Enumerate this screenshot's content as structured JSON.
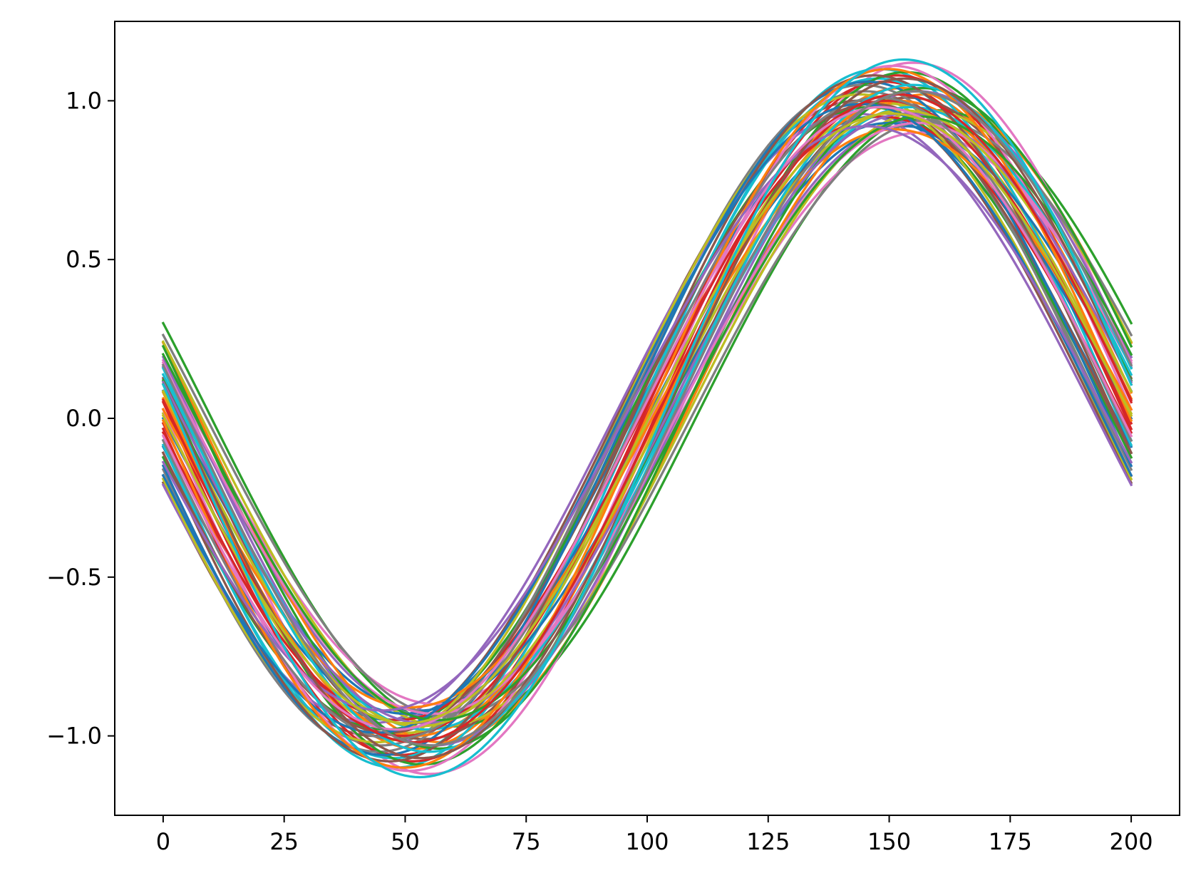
{
  "chart_data": {
    "type": "line",
    "title": "",
    "xlabel": "",
    "ylabel": "",
    "xlim": [
      -10,
      210
    ],
    "ylim": [
      -1.25,
      1.25
    ],
    "grid": false,
    "legend": "none",
    "x_ticks": [
      0,
      25,
      50,
      75,
      100,
      125,
      150,
      175,
      200
    ],
    "x_tick_labels": [
      "0",
      "25",
      "50",
      "75",
      "100",
      "125",
      "150",
      "175",
      "200"
    ],
    "y_ticks": [
      -1.0,
      -0.5,
      0.0,
      0.5,
      1.0
    ],
    "y_tick_labels": [
      "−1.0",
      "−0.5",
      "0.0",
      "0.5",
      "1.0"
    ],
    "x_domain": [
      0,
      200
    ],
    "series_model": "y = -A * sin(2*pi*(x - shift)/200)",
    "palette": [
      "#1f77b4",
      "#ff7f0e",
      "#2ca02c",
      "#d62728",
      "#9467bd",
      "#8c564b",
      "#e377c2",
      "#7f7f7f",
      "#bcbd22",
      "#17becf"
    ],
    "series": [
      {
        "amplitude": 0.95,
        "shift": -3.0
      },
      {
        "amplitude": 1.04,
        "shift": 2.5
      },
      {
        "amplitude": 0.97,
        "shift": 10.0
      },
      {
        "amplitude": 1.06,
        "shift": -1.0
      },
      {
        "amplitude": 0.94,
        "shift": 5.5
      },
      {
        "amplitude": 1.0,
        "shift": -6.5
      },
      {
        "amplitude": 1.12,
        "shift": 5.0
      },
      {
        "amplitude": 1.03,
        "shift": -5.0
      },
      {
        "amplitude": 0.99,
        "shift": 0.5
      },
      {
        "amplitude": 1.1,
        "shift": -2.0
      },
      {
        "amplitude": 0.92,
        "shift": 3.0
      },
      {
        "amplitude": 1.02,
        "shift": 7.5
      },
      {
        "amplitude": 0.98,
        "shift": -4.0
      },
      {
        "amplitude": 1.08,
        "shift": 1.5
      },
      {
        "amplitude": 0.96,
        "shift": -7.0
      },
      {
        "amplitude": 1.01,
        "shift": 4.0
      },
      {
        "amplitude": 0.9,
        "shift": 6.5
      },
      {
        "amplitude": 1.05,
        "shift": -5.5
      },
      {
        "amplitude": 0.97,
        "shift": 8.0
      },
      {
        "amplitude": 1.07,
        "shift": -2.5
      },
      {
        "amplitude": 0.93,
        "shift": 0.0
      },
      {
        "amplitude": 1.0,
        "shift": 2.0
      },
      {
        "amplitude": 1.09,
        "shift": 3.5
      },
      {
        "amplitude": 0.95,
        "shift": -1.5
      },
      {
        "amplitude": 1.03,
        "shift": 6.0
      },
      {
        "amplitude": 0.99,
        "shift": -3.5
      },
      {
        "amplitude": 1.11,
        "shift": 0.8
      },
      {
        "amplitude": 0.94,
        "shift": 9.0
      },
      {
        "amplitude": 1.02,
        "shift": -6.0
      },
      {
        "amplitude": 0.98,
        "shift": 4.5
      },
      {
        "amplitude": 1.06,
        "shift": -4.5
      },
      {
        "amplitude": 0.91,
        "shift": 1.0
      },
      {
        "amplitude": 1.04,
        "shift": 7.0
      },
      {
        "amplitude": 1.0,
        "shift": -0.5
      },
      {
        "amplitude": 0.96,
        "shift": 3.8
      },
      {
        "amplitude": 1.08,
        "shift": -3.2
      },
      {
        "amplitude": 0.93,
        "shift": 5.8
      },
      {
        "amplitude": 1.01,
        "shift": -2.2
      },
      {
        "amplitude": 0.97,
        "shift": 2.8
      },
      {
        "amplitude": 1.05,
        "shift": 4.8
      },
      {
        "amplitude": 0.99,
        "shift": -5.8
      },
      {
        "amplitude": 1.1,
        "shift": -0.2
      },
      {
        "amplitude": 0.95,
        "shift": 6.8
      },
      {
        "amplitude": 1.02,
        "shift": 1.8
      },
      {
        "amplitude": 0.92,
        "shift": -4.8
      },
      {
        "amplitude": 1.07,
        "shift": 3.2
      },
      {
        "amplitude": 0.98,
        "shift": -1.8
      },
      {
        "amplitude": 1.03,
        "shift": 5.2
      },
      {
        "amplitude": 0.96,
        "shift": 0.3
      },
      {
        "amplitude": 1.13,
        "shift": 3.0
      }
    ]
  }
}
